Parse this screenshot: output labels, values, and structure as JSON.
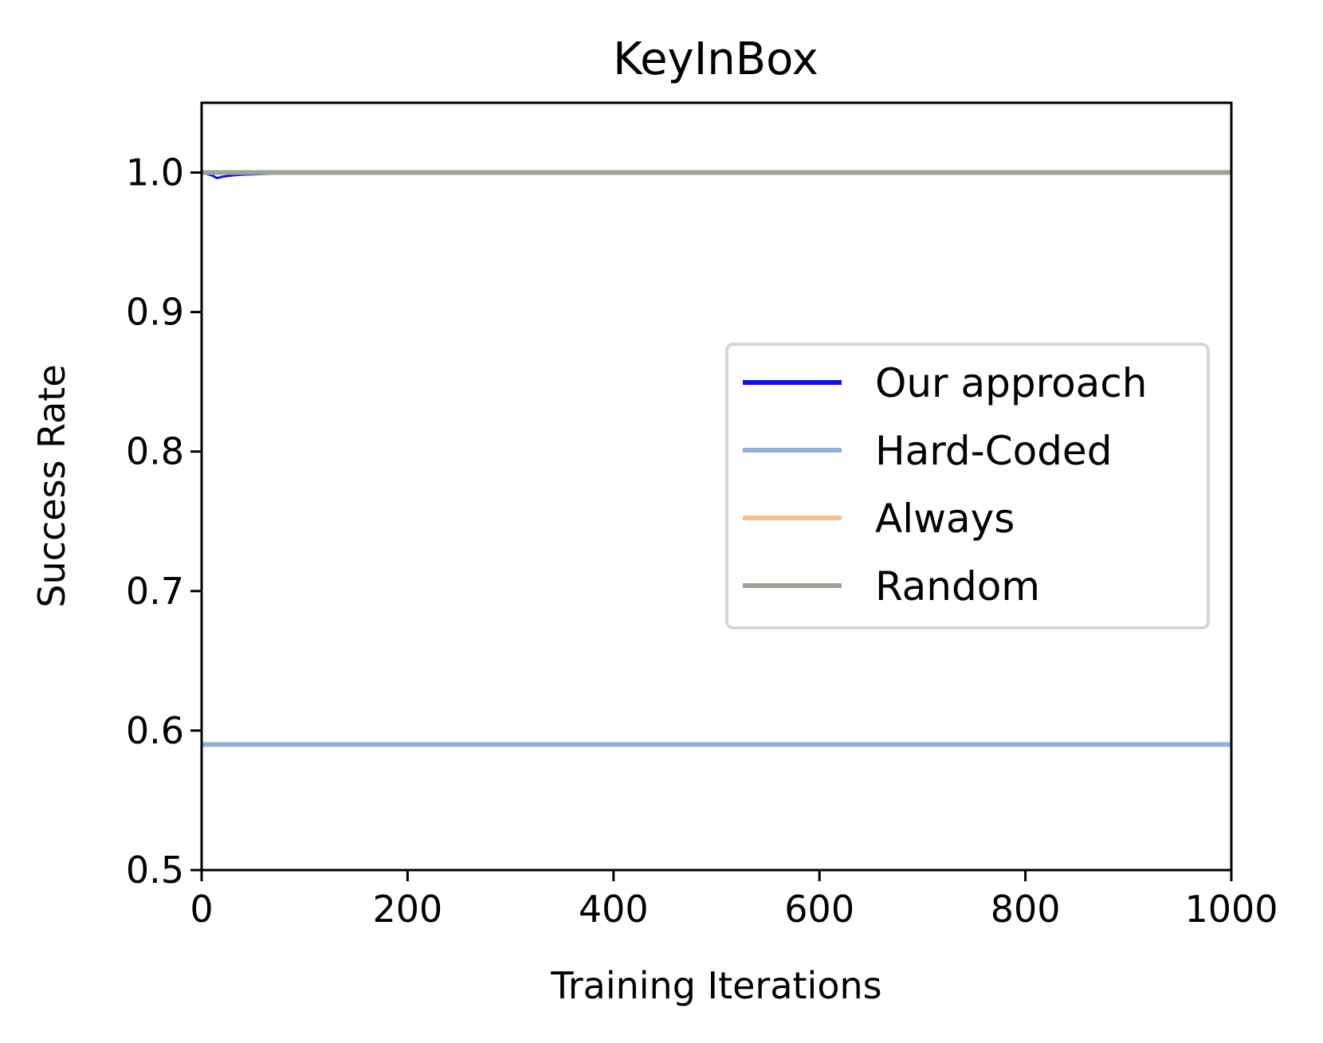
{
  "chart_data": {
    "type": "line",
    "title": "KeyInBox",
    "xlabel": "Training Iterations",
    "ylabel": "Success Rate",
    "xlim": [
      0,
      1000
    ],
    "ylim": [
      0.5,
      1.05
    ],
    "xticks": [
      0,
      200,
      400,
      600,
      800,
      1000
    ],
    "xtick_labels": [
      "0",
      "200",
      "400",
      "600",
      "800",
      "1000"
    ],
    "yticks": [
      0.5,
      0.6,
      0.7,
      0.8,
      0.9,
      1.0
    ],
    "ytick_labels": [
      "0.5",
      "0.6",
      "0.7",
      "0.8",
      "0.9",
      "1.0"
    ],
    "grid": false,
    "legend_position": "center-right",
    "series": [
      {
        "name": "Our approach",
        "color": "#1010f0",
        "x": [
          0,
          5,
          10,
          15,
          20,
          30,
          40,
          60,
          80,
          100,
          150,
          200,
          300,
          400,
          500,
          600,
          700,
          800,
          900,
          1000
        ],
        "y": [
          1.0,
          0.999,
          0.998,
          0.996,
          0.997,
          0.998,
          0.9985,
          0.999,
          0.9993,
          0.9995,
          0.9997,
          0.9998,
          0.9999,
          1.0,
          1.0,
          1.0,
          1.0,
          1.0,
          1.0,
          1.0
        ]
      },
      {
        "name": "Hard-Coded",
        "color": "#8fb0d8",
        "x": [
          0,
          1000
        ],
        "y": [
          0.59,
          0.59
        ]
      },
      {
        "name": "Always",
        "color": "#f8c08e",
        "x": [
          0,
          1000
        ],
        "y": [
          1.0,
          1.0
        ]
      },
      {
        "name": "Random",
        "color": "#9ba596",
        "x": [
          0,
          1000
        ],
        "y": [
          1.0,
          1.0
        ]
      }
    ]
  }
}
